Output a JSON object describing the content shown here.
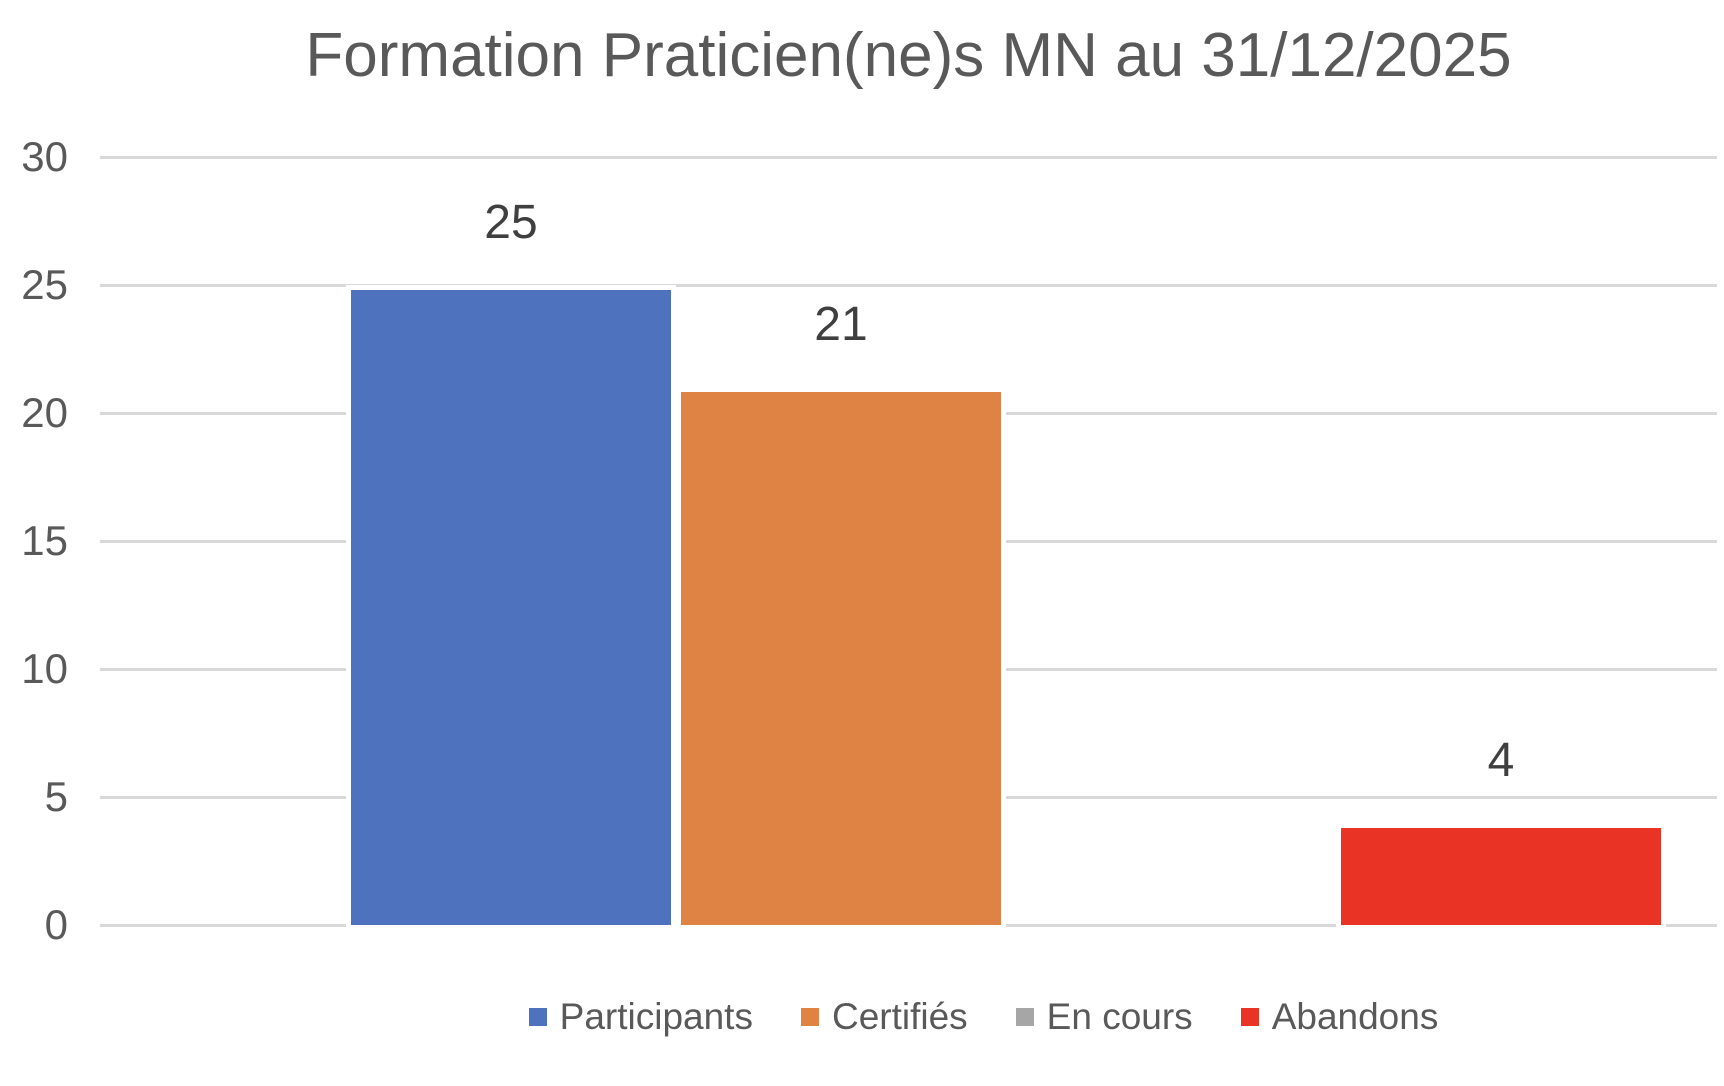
{
  "title": "Formation Praticien(ne)s MN au 31/12/2025",
  "chart_data": {
    "type": "bar",
    "title": "Formation Praticien(ne)s MN au 31/12/2025",
    "categories": [
      "Participants",
      "Certifiés",
      "En cours",
      "Abandons"
    ],
    "series": [
      {
        "name": "Participants",
        "value": 25,
        "label": "25",
        "color": "#4F72BE"
      },
      {
        "name": "Certifiés",
        "value": 21,
        "label": "21",
        "color": "#DE8344"
      },
      {
        "name": "En cours",
        "value": 0,
        "label": "",
        "color": "#A6A6A6"
      },
      {
        "name": "Abandons",
        "value": 4,
        "label": "4",
        "color": "#E93325"
      }
    ],
    "ylim": [
      0,
      30
    ],
    "yticks": [
      0,
      5,
      10,
      15,
      20,
      25,
      30
    ],
    "grid": true,
    "legend_position": "bottom"
  },
  "colors": {
    "gridline": "#D9D9D9",
    "axis_text": "#595959",
    "title_text": "#595959",
    "data_label_text": "#3F3F3F",
    "bar_outline": "#FFFFFF",
    "background": "#FFFFFF"
  }
}
